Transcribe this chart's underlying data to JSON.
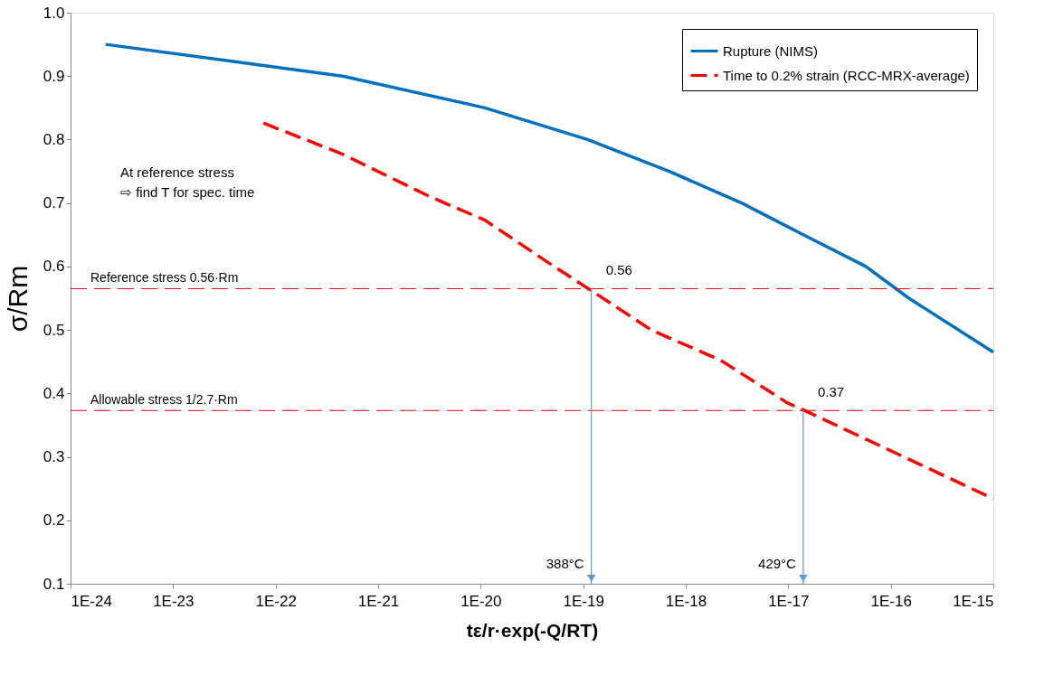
{
  "chart_data": {
    "type": "line",
    "xlabel": "tε/r·exp(-Q/RT)",
    "ylabel": "σ/Rm",
    "log": "x",
    "xlim": [
      1e-24,
      1e-15
    ],
    "xticks": [
      {
        "value": 1e-24,
        "label": "1E-24"
      },
      {
        "value": 1e-23,
        "label": "1E-23"
      },
      {
        "value": 1e-22,
        "label": "1E-22"
      },
      {
        "value": 1e-21,
        "label": "1E-21"
      },
      {
        "value": 1e-20,
        "label": "1E-20"
      },
      {
        "value": 1e-19,
        "label": "1E-19"
      },
      {
        "value": 1e-18,
        "label": "1E-18"
      },
      {
        "value": 1e-17,
        "label": "1E-17"
      },
      {
        "value": 1e-16,
        "label": "1E-16"
      },
      {
        "value": 1e-15,
        "label": "1E-15"
      }
    ],
    "ylim": [
      0.1,
      1.0
    ],
    "yticks": [
      {
        "value": 0.1,
        "label": "0.1"
      },
      {
        "value": 0.2,
        "label": "0.2"
      },
      {
        "value": 0.3,
        "label": "0.3"
      },
      {
        "value": 0.4,
        "label": "0.4"
      },
      {
        "value": 0.5,
        "label": "0.5"
      },
      {
        "value": 0.6,
        "label": "0.6"
      },
      {
        "value": 0.7,
        "label": "0.7"
      },
      {
        "value": 0.8,
        "label": "0.8"
      },
      {
        "value": 0.9,
        "label": "0.9"
      },
      {
        "value": 1.0,
        "label": "1.0"
      }
    ],
    "grid": false,
    "legend": "top right",
    "marker": "none",
    "series": [
      {
        "name": "Rupture (NIMS)",
        "color": "#0070c0",
        "line_style": "solid",
        "x": [
          2.2e-24,
          4.5e-22,
          1.1e-20,
          1.1e-19,
          6.9e-19,
          3.5e-18,
          1.4e-17,
          5.7e-17,
          1.5e-16,
          1e-15
        ],
        "values": [
          0.95,
          0.9,
          0.85,
          0.8,
          0.75,
          0.7,
          0.65,
          0.6,
          0.55,
          0.465
        ]
      },
      {
        "name": "Time to 0.2% strain (RCC-MRX-average)",
        "color": "#ff0000",
        "line_style": "dashed",
        "x": [
          7.6e-23,
          4.5e-22,
          3.2e-21,
          1.1e-20,
          5.2e-20,
          1.2e-19,
          4.6e-19,
          2.2e-18,
          9.8e-18,
          1.4e-17,
          5.7e-17,
          1e-15
        ],
        "values": [
          0.826,
          0.777,
          0.71,
          0.673,
          0.6,
          0.562,
          0.5,
          0.452,
          0.385,
          0.374,
          0.328,
          0.234
        ]
      }
    ],
    "ref_lines": [
      {
        "axis": "y",
        "value": 0.565,
        "label": "Reference stress 0.56·Rm",
        "color": "#ff0000",
        "line_style": "dashed"
      },
      {
        "axis": "y",
        "value": 0.373,
        "label": "Allowable stress 1/2.7·Rm",
        "color": "#ff0000",
        "line_style": "dashed"
      }
    ],
    "annotations": [
      "At reference stress\n⇨ find T for spec. time",
      {
        "text": "0.56",
        "x": 1.2e-19,
        "y": 0.565
      },
      {
        "text": "0.37",
        "x": 1.4e-17,
        "y": 0.373
      },
      "388°C",
      "429°C"
    ]
  }
}
